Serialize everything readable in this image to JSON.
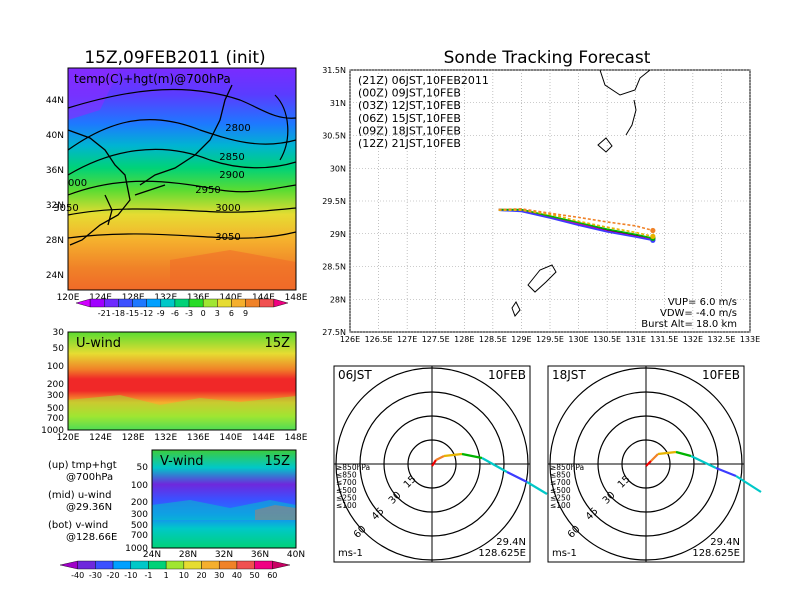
{
  "left_title": "15Z,09FEB2011 (init)",
  "right_title": "Sonde Tracking Forecast",
  "temp_panel": {
    "label": "temp(C)+hgt(m)@700hPa",
    "lon_ticks": [
      "120E",
      "124E",
      "128E",
      "132E",
      "136E",
      "140E",
      "144E",
      "148E"
    ],
    "lat_ticks": [
      "24N",
      "28N",
      "32N",
      "36N",
      "40N",
      "44N"
    ],
    "contours": [
      {
        "label": "2800",
        "value": 2800
      },
      {
        "label": "2850",
        "value": 2850
      },
      {
        "label": "2900",
        "value": 2900
      },
      {
        "label": "2950",
        "value": 2950
      },
      {
        "label": "3000",
        "value": 3000
      },
      {
        "label": "3050",
        "value": 3050
      },
      {
        "label": "3050",
        "value": 3050
      },
      {
        "label": "000",
        "value": 3000
      }
    ],
    "colorbar_labels": [
      "-21",
      "-18",
      "-15",
      "-12",
      "-9",
      "-6",
      "-3",
      "0",
      "3",
      "6",
      "9"
    ],
    "colorbar_colors": [
      "#d000ff",
      "#a000ff",
      "#6e2bff",
      "#3c50ff",
      "#1e78ff",
      "#00a0ff",
      "#00c8c8",
      "#00d278",
      "#28dc28",
      "#a0e632",
      "#e6dc32",
      "#f5af2d",
      "#f08228",
      "#f05050",
      "#f00082"
    ]
  },
  "u_panel": {
    "label": "U-wind",
    "time": "15Z",
    "p_ticks": [
      "30",
      "50",
      "100",
      "200",
      "300",
      "500",
      "700",
      "1000"
    ],
    "lon_ticks": [
      "120E",
      "124E",
      "128E",
      "132E",
      "136E",
      "140E",
      "144E",
      "148E"
    ]
  },
  "v_panel": {
    "label": "V-wind",
    "time": "15Z",
    "p_ticks": [
      "50",
      "100",
      "200",
      "300",
      "500",
      "700",
      "1000"
    ],
    "lat_ticks": [
      "24N",
      "28N",
      "32N",
      "36N",
      "40N"
    ]
  },
  "legend_notes": [
    {
      "line1": "(up) tmp+hgt",
      "line2": "@700hPa"
    },
    {
      "line1": "(mid) u-wind",
      "line2": "@29.36N"
    },
    {
      "line1": "(bot) v-wind",
      "line2": "@128.66E"
    }
  ],
  "wind_colorbar": {
    "labels": [
      "-40",
      "-30",
      "-20",
      "-10",
      "-1",
      "1",
      "10",
      "20",
      "30",
      "40",
      "50",
      "60"
    ],
    "colors": [
      "#a000c8",
      "#6e28dc",
      "#3c50ff",
      "#00a0ff",
      "#00c8c8",
      "#00d278",
      "#a0e632",
      "#e6dc32",
      "#f5af2d",
      "#f08228",
      "#f05050",
      "#f00082",
      "#c80064"
    ]
  },
  "track_map": {
    "lat_ticks": [
      "27.5N",
      "28N",
      "28.5N",
      "29N",
      "29.5N",
      "30N",
      "30.5N",
      "31N",
      "31.5N"
    ],
    "lon_ticks": [
      "126E",
      "126.5E",
      "127E",
      "127.5E",
      "128E",
      "128.5E",
      "129E",
      "129.5E",
      "130E",
      "130.5E",
      "131E",
      "131.5E",
      "132E",
      "132.5E",
      "133E"
    ],
    "legend": [
      {
        "text": "(21Z)  06JST,10FEB2011",
        "color": "#000000"
      },
      {
        "text": "(00Z)  09JST,10FEB",
        "color": "#c000c0"
      },
      {
        "text": "(03Z)  12JST,10FEB",
        "color": "#3c3cff"
      },
      {
        "text": "(06Z)  15JST,10FEB",
        "color": "#00b400"
      },
      {
        "text": "(09Z)  18JST,10FEB",
        "color": "#e6b400"
      },
      {
        "text": "(12Z)  21JST,10FEB",
        "color": "#f08228"
      }
    ],
    "params": [
      "VUP= 6.0 m/s",
      "VDW= -4.0 m/s",
      "Burst Alt= 18.0 km"
    ]
  },
  "chart_data": [
    {
      "type": "line",
      "title": "Sonde Tracking Forecast",
      "xlabel": "",
      "ylabel": "",
      "xlim": [
        126,
        133
      ],
      "ylim": [
        27.5,
        31.5
      ],
      "series": [
        {
          "name": "(21Z) 06JST,10FEB2011",
          "color": "#000000",
          "x": [
            128.6,
            129.0,
            129.5,
            130.0,
            130.5,
            131.0,
            131.3
          ],
          "y": [
            29.36,
            29.35,
            29.25,
            29.15,
            29.05,
            28.98,
            28.93
          ]
        },
        {
          "name": "(00Z) 09JST,10FEB",
          "color": "#c000c0",
          "x": [
            128.6,
            129.0,
            129.5,
            130.0,
            130.5,
            131.0,
            131.3
          ],
          "y": [
            29.37,
            29.36,
            29.26,
            29.15,
            29.04,
            28.96,
            28.91
          ]
        },
        {
          "name": "(03Z) 12JST,10FEB",
          "color": "#3c3cff",
          "x": [
            128.6,
            129.0,
            129.5,
            130.0,
            130.5,
            131.0,
            131.3
          ],
          "y": [
            29.36,
            29.34,
            29.24,
            29.13,
            29.03,
            28.95,
            28.9
          ]
        },
        {
          "name": "(06Z) 15JST,10FEB",
          "color": "#00b400",
          "x": [
            128.6,
            129.0,
            129.5,
            130.0,
            130.5,
            131.0,
            131.3
          ],
          "y": [
            29.37,
            29.37,
            29.27,
            29.17,
            29.07,
            28.99,
            28.93
          ]
        },
        {
          "name": "(09Z) 18JST,10FEB",
          "color": "#e6b400",
          "x": [
            128.6,
            129.0,
            129.6,
            130.0,
            130.5,
            131.0,
            131.3
          ],
          "y": [
            29.36,
            29.36,
            29.28,
            29.19,
            29.1,
            29.02,
            28.96
          ]
        },
        {
          "name": "(12Z) 21JST,10FEB",
          "color": "#f08228",
          "x": [
            128.6,
            129.0,
            129.6,
            130.0,
            130.5,
            131.0,
            131.3
          ],
          "y": [
            29.37,
            29.38,
            29.3,
            29.25,
            29.18,
            29.12,
            29.05
          ]
        }
      ]
    }
  ],
  "hodographs": [
    {
      "time": "06JST",
      "date": "10FEB",
      "levels": [
        {
          "text": "≥850hPa",
          "color": "#f00000"
        },
        {
          "text": "≤850",
          "color": "#f08228"
        },
        {
          "text": "≤700",
          "color": "#e6b400"
        },
        {
          "text": "≤500",
          "color": "#00b400"
        },
        {
          "text": "≤250",
          "color": "#00c8c8"
        },
        {
          "text": "≤100",
          "color": "#3c3cff"
        }
      ],
      "rings": [
        "15",
        "30",
        "45",
        "60"
      ],
      "units": "ms-1",
      "lat": "29.4N",
      "lon": "128.625E"
    },
    {
      "time": "18JST",
      "date": "10FEB",
      "levels": [
        {
          "text": "≥850hPa",
          "color": "#f00000"
        },
        {
          "text": "≤850",
          "color": "#f08228"
        },
        {
          "text": "≤700",
          "color": "#e6b400"
        },
        {
          "text": "≤500",
          "color": "#00b400"
        },
        {
          "text": "≤250",
          "color": "#00c8c8"
        },
        {
          "text": "≤100",
          "color": "#3c3cff"
        }
      ],
      "rings": [
        "15",
        "30",
        "45",
        "60"
      ],
      "units": "ms-1",
      "lat": "29.4N",
      "lon": "128.625E"
    }
  ]
}
